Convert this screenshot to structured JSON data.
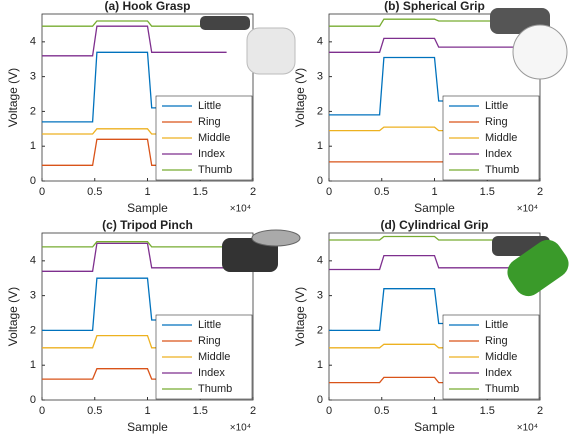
{
  "chart_data": [
    {
      "type": "line",
      "title": "(a) Hook Grasp",
      "xlabel": "Sample",
      "ylabel": "Voltage (V)",
      "x_multiplier": "×10⁴",
      "x": [
        0,
        4800,
        5200,
        10000,
        10400,
        17500
      ],
      "xlim": [
        0,
        20000
      ],
      "xticks": [
        {
          "value": 0,
          "label": "0"
        },
        {
          "value": 5000,
          "label": "0.5"
        },
        {
          "value": 10000,
          "label": "1"
        },
        {
          "value": 15000,
          "label": "1.5"
        },
        {
          "value": 20000,
          "label": "2"
        }
      ],
      "ylim": [
        0,
        4.8
      ],
      "yticks": [
        0,
        1,
        2,
        3,
        4
      ],
      "legend": "lower right",
      "series": [
        {
          "name": "Little",
          "color": "#0072bd",
          "values": [
            1.7,
            1.7,
            3.7,
            3.7,
            2.1,
            2.1
          ]
        },
        {
          "name": "Ring",
          "color": "#d95319",
          "values": [
            0.45,
            0.45,
            1.2,
            1.2,
            0.45,
            0.45
          ]
        },
        {
          "name": "Middle",
          "color": "#edb120",
          "values": [
            1.35,
            1.35,
            1.5,
            1.5,
            1.35,
            1.35
          ]
        },
        {
          "name": "Index",
          "color": "#7e2f8e",
          "values": [
            3.6,
            3.6,
            4.45,
            4.45,
            3.7,
            3.7
          ]
        },
        {
          "name": "Thumb",
          "color": "#77ac30",
          "values": [
            4.45,
            4.45,
            4.6,
            4.6,
            4.45,
            4.45
          ]
        }
      ]
    },
    {
      "type": "line",
      "title": "(b) Spherical Grip",
      "xlabel": "Sample",
      "ylabel": "Voltage (V)",
      "x_multiplier": "×10⁴",
      "x": [
        0,
        4800,
        5200,
        10000,
        10400,
        17500
      ],
      "xlim": [
        0,
        20000
      ],
      "xticks": [
        {
          "value": 0,
          "label": "0"
        },
        {
          "value": 5000,
          "label": "0.5"
        },
        {
          "value": 10000,
          "label": "1"
        },
        {
          "value": 15000,
          "label": "1.5"
        },
        {
          "value": 20000,
          "label": "2"
        }
      ],
      "ylim": [
        0,
        4.8
      ],
      "yticks": [
        0,
        1,
        2,
        3,
        4
      ],
      "legend": "lower right",
      "series": [
        {
          "name": "Little",
          "color": "#0072bd",
          "values": [
            1.9,
            1.9,
            3.55,
            3.55,
            2.3,
            2.3
          ]
        },
        {
          "name": "Ring",
          "color": "#d95319",
          "values": [
            0.55,
            0.55,
            0.55,
            0.55,
            0.55,
            0.55
          ]
        },
        {
          "name": "Middle",
          "color": "#edb120",
          "values": [
            1.45,
            1.45,
            1.55,
            1.55,
            1.45,
            1.45
          ]
        },
        {
          "name": "Index",
          "color": "#7e2f8e",
          "values": [
            3.7,
            3.7,
            4.1,
            4.1,
            3.85,
            3.85
          ]
        },
        {
          "name": "Thumb",
          "color": "#77ac30",
          "values": [
            4.45,
            4.45,
            4.65,
            4.65,
            4.6,
            4.6
          ]
        }
      ]
    },
    {
      "type": "line",
      "title": "(c) Tripod Pinch",
      "xlabel": "Sample",
      "ylabel": "Voltage (V)",
      "x_multiplier": "×10⁴",
      "x": [
        0,
        4800,
        5200,
        10000,
        10400,
        17500
      ],
      "xlim": [
        0,
        20000
      ],
      "xticks": [
        {
          "value": 0,
          "label": "0"
        },
        {
          "value": 5000,
          "label": "0.5"
        },
        {
          "value": 10000,
          "label": "1"
        },
        {
          "value": 15000,
          "label": "1.5"
        },
        {
          "value": 20000,
          "label": "2"
        }
      ],
      "ylim": [
        0,
        4.8
      ],
      "yticks": [
        0,
        1,
        2,
        3,
        4
      ],
      "legend": "lower right",
      "series": [
        {
          "name": "Little",
          "color": "#0072bd",
          "values": [
            2.0,
            2.0,
            3.5,
            3.5,
            2.3,
            2.3
          ]
        },
        {
          "name": "Ring",
          "color": "#d95319",
          "values": [
            0.6,
            0.6,
            0.9,
            0.9,
            0.6,
            0.6
          ]
        },
        {
          "name": "Middle",
          "color": "#edb120",
          "values": [
            1.5,
            1.5,
            1.85,
            1.85,
            1.5,
            1.5
          ]
        },
        {
          "name": "Index",
          "color": "#7e2f8e",
          "values": [
            3.7,
            3.7,
            4.5,
            4.5,
            3.8,
            3.8
          ]
        },
        {
          "name": "Thumb",
          "color": "#77ac30",
          "values": [
            4.4,
            4.4,
            4.55,
            4.55,
            4.4,
            4.4
          ]
        }
      ]
    },
    {
      "type": "line",
      "title": "(d) Cylindrical Grip",
      "xlabel": "Sample",
      "ylabel": "Voltage (V)",
      "x_multiplier": "×10⁴",
      "x": [
        0,
        4800,
        5200,
        10000,
        10400,
        17500
      ],
      "xlim": [
        0,
        20000
      ],
      "xticks": [
        {
          "value": 0,
          "label": "0"
        },
        {
          "value": 5000,
          "label": "0.5"
        },
        {
          "value": 10000,
          "label": "1"
        },
        {
          "value": 15000,
          "label": "1.5"
        },
        {
          "value": 20000,
          "label": "2"
        }
      ],
      "ylim": [
        0,
        4.8
      ],
      "yticks": [
        0,
        1,
        2,
        3,
        4
      ],
      "legend": "lower right",
      "series": [
        {
          "name": "Little",
          "color": "#0072bd",
          "values": [
            2.0,
            2.0,
            3.2,
            3.2,
            2.2,
            2.2
          ]
        },
        {
          "name": "Ring",
          "color": "#d95319",
          "values": [
            0.5,
            0.5,
            0.65,
            0.65,
            0.5,
            0.5
          ]
        },
        {
          "name": "Middle",
          "color": "#edb120",
          "values": [
            1.5,
            1.5,
            1.6,
            1.6,
            1.5,
            1.5
          ]
        },
        {
          "name": "Index",
          "color": "#7e2f8e",
          "values": [
            3.75,
            3.75,
            4.15,
            4.15,
            3.8,
            3.8
          ]
        },
        {
          "name": "Thumb",
          "color": "#77ac30",
          "values": [
            4.6,
            4.6,
            4.7,
            4.7,
            4.6,
            4.6
          ]
        }
      ]
    }
  ]
}
